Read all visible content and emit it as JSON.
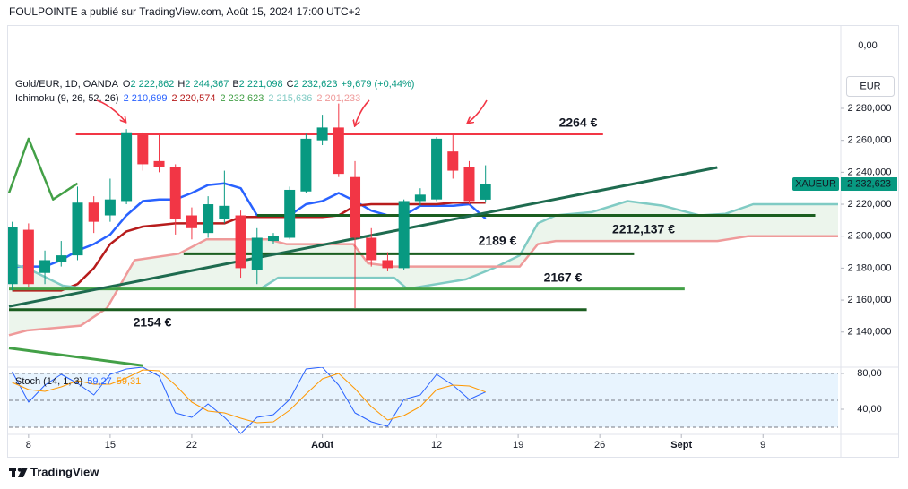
{
  "header": "FOULPOINTE a publié sur TradingView.com, Août 15, 2024 17:00 UTC+2",
  "footer": "TradingView",
  "chart_data": [
    {
      "type": "candlestick",
      "title": "Gold/EUR, 1D, OANDA",
      "ohlc_legend": [
        {
          "label": "O",
          "value": "2 222,862"
        },
        {
          "label": "H",
          "value": "2 244,367"
        },
        {
          "label": "B",
          "value": "2 221,098"
        },
        {
          "label": "C",
          "value": "2 232,623"
        }
      ],
      "change": "+9,679 (+0,44%)",
      "currency": "EUR",
      "top_label": "0,00",
      "symbol": "XAUEUR",
      "last_price": {
        "value": 2232.623,
        "label": "2 232,623"
      },
      "up_color": "#089981",
      "down_color": "#f23645",
      "x": [
        -1,
        0,
        1,
        2,
        3,
        4,
        5,
        6,
        7,
        8,
        9,
        10,
        11,
        12,
        13,
        14,
        15,
        16,
        17,
        18,
        19,
        20,
        21,
        22,
        23,
        24,
        25,
        26,
        27,
        28
      ],
      "open": [
        2170,
        2204,
        2177,
        2184,
        2188,
        2221,
        2213,
        2222,
        2264,
        2247,
        2243,
        2213,
        2202,
        2211,
        2213,
        2179,
        2197,
        2199,
        2228,
        2260,
        2268,
        2237,
        2199,
        2185,
        2180,
        2222,
        2223,
        2253,
        2243,
        2222.862
      ],
      "high": [
        2209,
        2208,
        2191,
        2197,
        2231,
        2225,
        2236,
        2267,
        2265,
        2264,
        2245,
        2218,
        2225,
        2241,
        2216,
        2205,
        2202,
        2231,
        2264,
        2276,
        2283,
        2247,
        2205,
        2190,
        2223,
        2230,
        2262,
        2264,
        2247,
        2244.367
      ],
      "low": [
        2166,
        2168,
        2170,
        2181,
        2185,
        2202,
        2209,
        2220,
        2241,
        2240,
        2201,
        2198,
        2199,
        2208,
        2174,
        2170,
        2195,
        2198,
        2227,
        2257,
        2237,
        2155,
        2181,
        2178,
        2179,
        2219,
        2222,
        2236,
        2220,
        2221.098
      ],
      "close": [
        2206,
        2170,
        2185,
        2188,
        2221,
        2209,
        2223,
        2265,
        2245,
        2243,
        2211,
        2205,
        2220,
        2219,
        2180,
        2199,
        2200,
        2229,
        2261,
        2268,
        2239,
        2199,
        2185,
        2180,
        2222,
        2226,
        2261,
        2241,
        2222,
        2232.623
      ],
      "indicator": {
        "title": "Ichimoku (9, 26, 52, 26)",
        "fill": "#43a047",
        "series": [
          {
            "color": "#2962ff",
            "legend": "2 210,699",
            "x": [
              -1,
              0,
              1,
              2,
              3,
              4,
              5,
              6,
              7,
              8,
              9,
              10,
              11,
              12,
              13,
              14,
              15,
              16,
              17,
              18,
              19,
              20,
              21,
              22,
              23,
              24,
              25,
              26,
              27,
              28
            ],
            "values": [
              2181,
              2181,
              2181,
              2185,
              2191,
              2195,
              2201,
              2213,
              2222,
              2223,
              2223,
              2227,
              2232,
              2233,
              2230,
              2213,
              2213,
              2213,
              2220,
              2222,
              2227,
              2222,
              2216,
              2213,
              2213,
              2219,
              2219,
              2219,
              2220,
              2211
            ]
          },
          {
            "color": "#b71c1c",
            "legend": "2 220,574",
            "x": [
              -1,
              0,
              1,
              2,
              3,
              4,
              5,
              6,
              7,
              8,
              9,
              10,
              11,
              12,
              13,
              14,
              15,
              16,
              17,
              18,
              19,
              20,
              21,
              22,
              23,
              24,
              25,
              26,
              27,
              28
            ],
            "values": [
              2166,
              2166,
              2166,
              2166,
              2170,
              2180,
              2195,
              2203,
              2206,
              2207,
              2208,
              2208,
              2208,
              2208,
              2212,
              2212,
              2212,
              2212,
              2212,
              2212,
              2213,
              2219,
              2220,
              2220,
              2220,
              2220,
              2220,
              2221,
              2221,
              2221
            ]
          },
          {
            "color": "#43a047",
            "legend": "2 232,623",
            "x": [
              -1.2,
              0,
              1.5,
              3
            ],
            "values": [
              2227,
              2261,
              2223,
              2233
            ]
          },
          {
            "color": "#80cbc4",
            "legend": "2 215,636",
            "x": [
              -1.2,
              -0.1,
              2.1,
              3.7,
              14.2,
              15.3,
              22.4,
              23.2,
              26.8,
              28.5,
              30.1,
              31.2,
              32.3,
              34.5,
              36.7,
              38.9,
              41.1,
              42.7,
              44.4,
              49.6
            ],
            "values": [
              2183,
              2180,
              2169,
              2167,
              2167,
              2174,
              2174,
              2167,
              2173,
              2180,
              2188,
              2208,
              2213,
              2215,
              2222,
              2219,
              2213,
              2214,
              2220,
              2220
            ]
          },
          {
            "color": "#ef9a9a",
            "legend": "2 201,233",
            "x": [
              -1.2,
              -0.1,
              3.2,
              4.8,
              6.5,
              9.2,
              10.9,
              14.7,
              15.8,
              19.9,
              20.8,
              22.4,
              30.1,
              31.2,
              32.3,
              42.2,
              44.1,
              49.6
            ],
            "values": [
              2138,
              2141,
              2144,
              2155,
              2185,
              2189,
              2198,
              2198,
              2195,
              2195,
              2183,
              2181,
              2181,
              2195,
              2197,
              2197,
              2200,
              2200
            ]
          }
        ]
      },
      "levels": [
        {
          "x": [
            2.9,
            35.2
          ],
          "y": [
            2264,
            2264
          ],
          "color": "#f23645"
        },
        {
          "x": [
            14,
            48.2
          ],
          "y": [
            2213,
            2213
          ],
          "color": "#1b5e20"
        },
        {
          "x": [
            9.5,
            37.1
          ],
          "y": [
            2189,
            2189
          ],
          "color": "#1b5e20"
        },
        {
          "x": [
            -1.2,
            40.2
          ],
          "y": [
            2167,
            2167
          ],
          "color": "#43a047"
        },
        {
          "x": [
            -1.2,
            34.2
          ],
          "y": [
            2154,
            2154
          ],
          "color": "#1b5e20"
        },
        {
          "x": [
            -1.2,
            42.2
          ],
          "y": [
            2156,
            2243
          ],
          "color": "#1e6b4f"
        },
        {
          "x": [
            -1.2,
            7.0
          ],
          "y": [
            2130,
            2119
          ],
          "color": "#43a047"
        }
      ],
      "annotations": [
        {
          "text": "2264 €",
          "color": "#f23645"
        },
        {
          "text": "2212,137 €",
          "color": "#f23645"
        },
        {
          "text": "2189 €",
          "color": "#f23645"
        },
        {
          "text": "2167 €",
          "color": "#388e3c"
        },
        {
          "text": "2154 €",
          "color": "#388e3c"
        }
      ],
      "xlim": [
        -1.2,
        49.6
      ],
      "xticks": [
        {
          "value": 0,
          "label": "8"
        },
        {
          "value": 5,
          "label": "15"
        },
        {
          "value": 10,
          "label": "22"
        },
        {
          "value": 18,
          "label": "Août"
        },
        {
          "value": 25,
          "label": "12"
        },
        {
          "value": 30,
          "label": "19"
        },
        {
          "value": 35,
          "label": "26"
        },
        {
          "value": 40,
          "label": "Sept"
        },
        {
          "value": 45,
          "label": "9"
        }
      ],
      "ylim": [
        2118,
        2331
      ],
      "yticks": [
        {
          "value": 2280,
          "label": "2 280,000"
        },
        {
          "value": 2260,
          "label": "2 260,000"
        },
        {
          "value": 2240,
          "label": "2 240,000"
        },
        {
          "value": 2220,
          "label": "2 220,000"
        },
        {
          "value": 2200,
          "label": "2 200,000"
        },
        {
          "value": 2180,
          "label": "2 180,000"
        },
        {
          "value": 2160,
          "label": "2 160,000"
        },
        {
          "value": 2140,
          "label": "2 140,000"
        }
      ]
    },
    {
      "type": "line",
      "title": "Stoch (14, 1, 3)",
      "x": [
        -1,
        0,
        1,
        2,
        3,
        4,
        5,
        6,
        7,
        8,
        9,
        10,
        11,
        12,
        13,
        14,
        15,
        16,
        17,
        18,
        19,
        20,
        21,
        22,
        23,
        24,
        25,
        26,
        27,
        28
      ],
      "series": [
        {
          "color": "#2962ff",
          "legend": "59,27",
          "values": [
            82,
            48,
            67,
            79,
            69,
            56,
            79,
            85,
            87,
            77,
            36,
            31,
            46,
            31,
            13,
            31,
            34,
            51,
            85,
            87,
            67,
            36,
            26,
            21,
            51,
            56,
            79,
            67,
            51,
            59.27
          ]
        },
        {
          "color": "#ff9800",
          "legend": "59,31",
          "values": [
            70,
            62,
            60,
            65,
            72,
            68,
            68,
            75,
            84,
            83,
            67,
            48,
            38,
            36,
            30,
            25,
            26,
            39,
            57,
            74,
            80,
            63,
            43,
            28,
            33,
            43,
            62,
            67,
            66,
            59.31
          ]
        }
      ],
      "levels": [
        80,
        50,
        20
      ],
      "xlim": [
        -1.2,
        49.6
      ],
      "ylim": [
        12,
        87
      ],
      "yticks": [
        {
          "value": 80,
          "label": "80,00"
        },
        {
          "value": 40,
          "label": "40,00"
        }
      ]
    }
  ]
}
